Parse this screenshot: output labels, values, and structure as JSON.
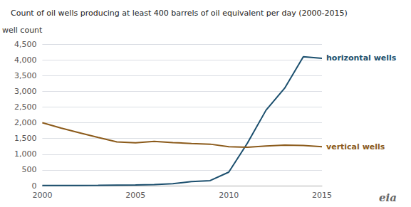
{
  "chart_data": {
    "type": "line",
    "title": "Count of oil wells producing at least 400 barrels of oil equivalent per day (2000-2015)",
    "ylabel": "well count",
    "x": [
      2000,
      2001,
      2002,
      2003,
      2004,
      2005,
      2006,
      2007,
      2008,
      2009,
      2010,
      2011,
      2012,
      2013,
      2014,
      2015
    ],
    "series": [
      {
        "name": "horizontal wells",
        "color": "#1b4f6e",
        "values": [
          5,
          6,
          8,
          10,
          15,
          20,
          35,
          60,
          130,
          160,
          430,
          1350,
          2400,
          3100,
          4100,
          4050
        ]
      },
      {
        "name": "vertical wells",
        "color": "#8b5a1a",
        "values": [
          2000,
          1830,
          1680,
          1530,
          1390,
          1360,
          1410,
          1370,
          1340,
          1320,
          1240,
          1220,
          1260,
          1290,
          1280,
          1240
        ]
      }
    ],
    "xlim": [
      2000,
      2015
    ],
    "xticks": [
      2000,
      2005,
      2010,
      2015
    ],
    "ylim": [
      0,
      4500
    ],
    "yticks": [
      0,
      500,
      {
        "value": 1000,
        "label": "1,000"
      },
      {
        "value": 1500,
        "label": "1,500"
      },
      {
        "value": 2000,
        "label": "2,000"
      },
      {
        "value": 2500,
        "label": "2,500"
      },
      {
        "value": 3000,
        "label": "3,000"
      },
      {
        "value": 3500,
        "label": "3,500"
      },
      {
        "value": 4000,
        "label": "4,000"
      },
      {
        "value": 4500,
        "label": "4,500"
      }
    ],
    "grid": true,
    "annotations": [
      "eia"
    ]
  }
}
